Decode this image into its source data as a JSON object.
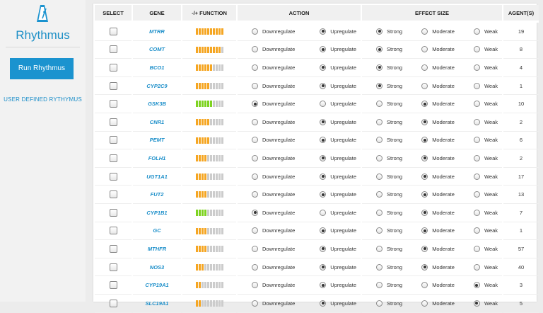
{
  "app": {
    "title": "Rhythmus",
    "run_label": "Run Rhythmus",
    "user_link": "USER DEFINED RYTHYMUS"
  },
  "colors": {
    "accent": "#1b93cf",
    "orange": "#f5a623",
    "green": "#7ed321",
    "grey": "#cccccc"
  },
  "headers": {
    "select": "SELECT",
    "gene": "GENE",
    "function": "-/+ FUNCTION",
    "action": "ACTION",
    "effect": "EFFECT SIZE",
    "agents": "AGENT(S)"
  },
  "labels": {
    "down": "Downregulate",
    "up": "Upregulate",
    "strong": "Strong",
    "moderate": "Moderate",
    "weak": "Weak"
  },
  "rows": [
    {
      "gene": "MTRR",
      "func_color": "orange",
      "func_filled": 10,
      "action": "up",
      "effect": "strong",
      "agents": "19"
    },
    {
      "gene": "COMT",
      "func_color": "orange",
      "func_filled": 9,
      "action": "up",
      "effect": "strong",
      "agents": "8"
    },
    {
      "gene": "BCO1",
      "func_color": "orange",
      "func_filled": 6,
      "action": "up",
      "effect": "strong",
      "agents": "4"
    },
    {
      "gene": "CYP2C9",
      "func_color": "orange",
      "func_filled": 5,
      "action": "up",
      "effect": "strong",
      "agents": "1"
    },
    {
      "gene": "GSK3B",
      "func_color": "green",
      "func_filled": 6,
      "action": "down",
      "effect": "moderate",
      "agents": "10"
    },
    {
      "gene": "CNR1",
      "func_color": "orange",
      "func_filled": 5,
      "action": "up",
      "effect": "moderate",
      "agents": "2"
    },
    {
      "gene": "PEMT",
      "func_color": "orange",
      "func_filled": 5,
      "action": "up",
      "effect": "moderate",
      "agents": "6"
    },
    {
      "gene": "FOLH1",
      "func_color": "orange",
      "func_filled": 4,
      "action": "up",
      "effect": "moderate",
      "agents": "2"
    },
    {
      "gene": "UGT1A1",
      "func_color": "orange",
      "func_filled": 4,
      "action": "up",
      "effect": "moderate",
      "agents": "17"
    },
    {
      "gene": "FUT2",
      "func_color": "orange",
      "func_filled": 4,
      "action": "up",
      "effect": "moderate",
      "agents": "13"
    },
    {
      "gene": "CYP1B1",
      "func_color": "green",
      "func_filled": 4,
      "action": "down",
      "effect": "moderate",
      "agents": "7"
    },
    {
      "gene": "GC",
      "func_color": "orange",
      "func_filled": 4,
      "action": "up",
      "effect": "moderate",
      "agents": "1"
    },
    {
      "gene": "MTHFR",
      "func_color": "orange",
      "func_filled": 4,
      "action": "up",
      "effect": "moderate",
      "agents": "57"
    },
    {
      "gene": "NOS3",
      "func_color": "orange",
      "func_filled": 3,
      "action": "up",
      "effect": "moderate",
      "agents": "40"
    },
    {
      "gene": "CYP19A1",
      "func_color": "orange",
      "func_filled": 2,
      "action": "up",
      "effect": "weak",
      "agents": "3"
    },
    {
      "gene": "SLC19A1",
      "func_color": "orange",
      "func_filled": 2,
      "action": "up",
      "effect": "weak",
      "agents": "5"
    }
  ]
}
